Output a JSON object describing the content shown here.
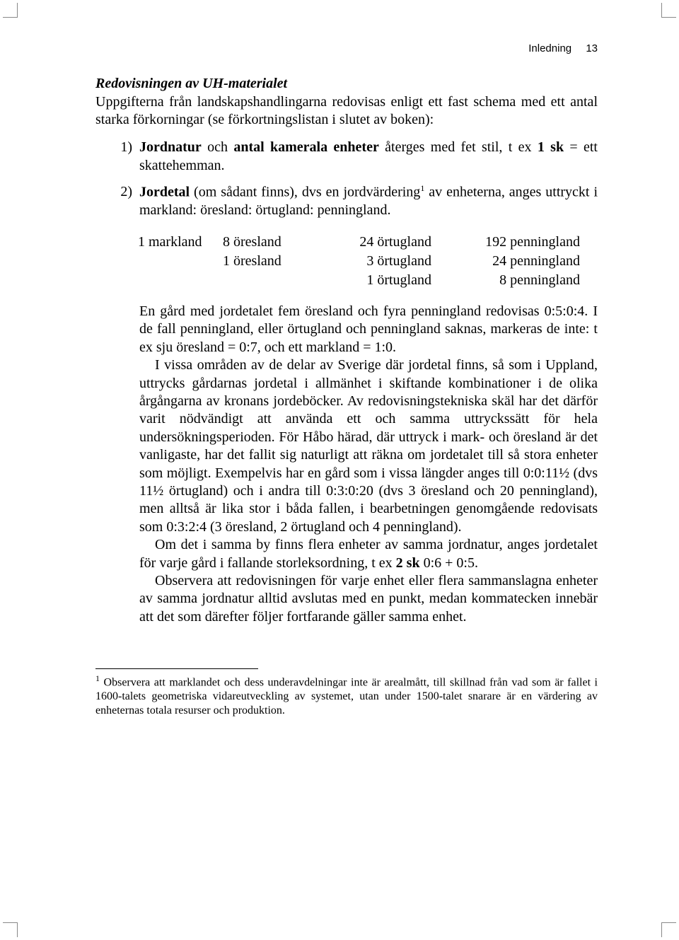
{
  "header": {
    "label": "Inledning",
    "page": "13"
  },
  "section_title": "Redovisningen av UH-materialet",
  "intro": "Uppgifterna från landskapshandlingarna redovisas enligt ett fast schema med ett antal starka förkorningar (se förkortningslistan i slutet av boken):",
  "item1": {
    "n": "1)",
    "pre": "Jordnatur",
    "post": " och ",
    "bold2": "antal kamerala enheter",
    "tail": " återges med fet stil, t ex ",
    "ex": "1 sk",
    "eq": " = ett skattehemman."
  },
  "item2": {
    "n": "2)",
    "pre": "Jordetal",
    "tail1": " (om sådant finns), dvs en jordvärdering",
    "sup": "1",
    "tail2": " av enheterna, anges uttryckt i markland: öresland: örtugland: penningland."
  },
  "table": {
    "r1": {
      "c1": "1 markland",
      "c2": "8 öresland",
      "c3": "24 örtugland",
      "c4": "192 penningland"
    },
    "r2": {
      "c1": "",
      "c2": "1 öresland",
      "c3": "3 örtugland",
      "c4": "24 penningland"
    },
    "r3": {
      "c1": "",
      "c2": "",
      "c3": "1 örtugland",
      "c4": "8 penningland"
    }
  },
  "p1": "En gård med jordetalet fem öresland och fyra penningland redovisas 0:5:0:4. I de fall penningland, eller örtugland och penningland saknas, markeras de inte: t ex sju öresland = 0:7, och ett markland = 1:0.",
  "p2": "I vissa områden av de delar av Sverige där jordetal finns, så som i Uppland, uttrycks gårdarnas jordetal i allmänhet i skiftande kombinationer i de olika årgångarna av kronans jordeböcker. Av redovisningstekniska skäl har det därför varit nödvändigt att använda ett och samma uttryckssätt för hela undersökningsperioden. För Håbo härad, där uttryck i mark- och öresland är det vanligaste, har det fallit sig naturligt att räkna om jordetalet till så stora enheter som möjligt. Exempelvis har en gård som i vissa längder anges till 0:0:11½ (dvs 11½ örtugland) och i andra till 0:3:0:20 (dvs 3 öresland och 20 penningland), men alltså är lika stor i båda fallen, i bearbetningen genomgående redovisats som 0:3:2:4 (3 öresland, 2 örtugland och 4 penningland).",
  "p3a": "Om det i samma by finns flera enheter av samma jordnatur, anges jordetalet för varje gård i fallande storleksordning, t ex ",
  "p3b": "2 sk",
  "p3c": " 0:6 + 0:5.",
  "p4": "Observera att redovisningen för varje enhet eller flera sammanslagna enheter av samma jordnatur alltid avslutas med en punkt, medan kommatecken innebär att det som därefter följer fortfarande gäller samma enhet.",
  "footnote": {
    "sup": "1",
    "text": " Observera att marklandet och dess underavdelningar inte är arealmått, till skillnad från vad som är fallet i 1600-talets geometriska vidareutveckling av systemet, utan under 1500-talet snarare är en värdering av enheternas totala resurser och produktion."
  }
}
